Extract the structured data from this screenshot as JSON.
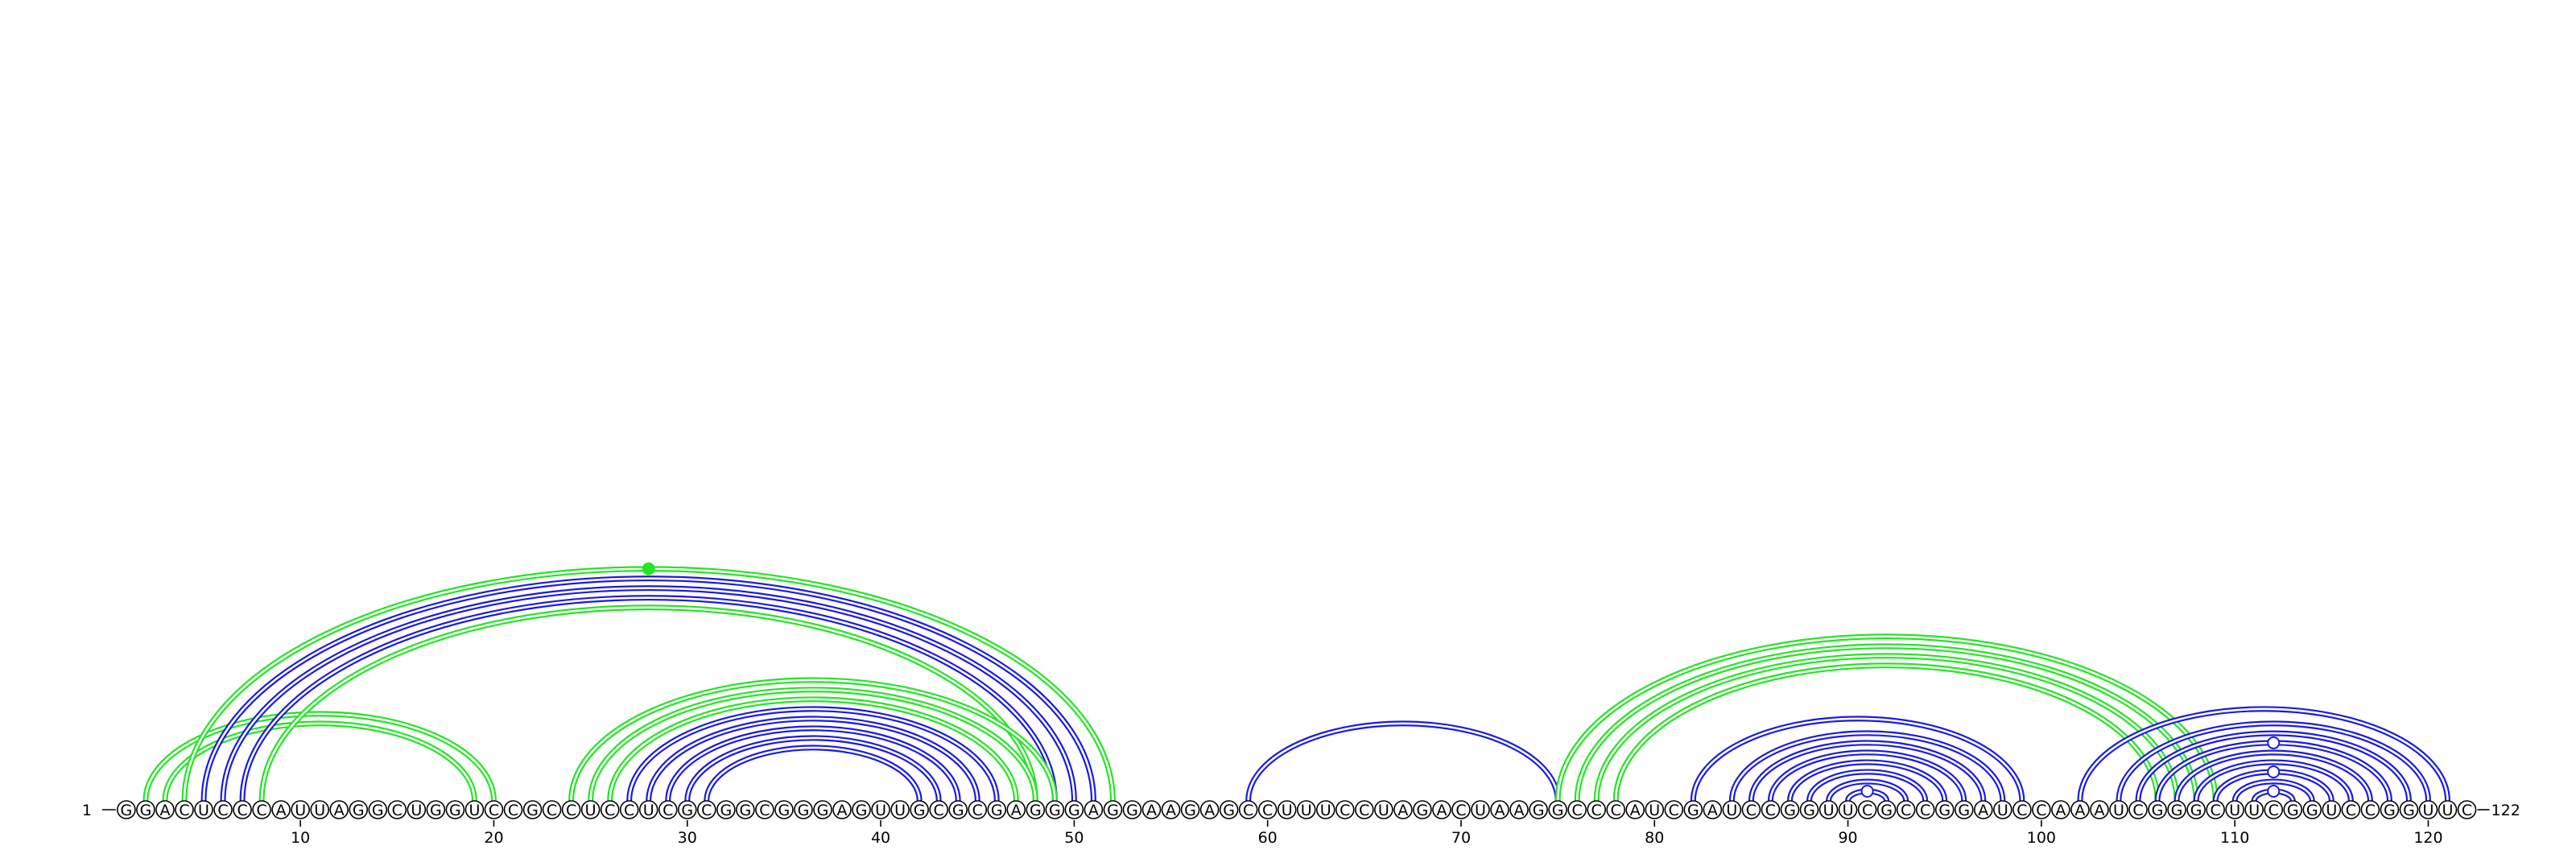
{
  "sequence": "GGACUCCCAUUAGGCUGGUCCGCCUCCUCGCGGCGGGAGUUGCGCGAGGGAGGAAGAGCCUUUCCUAGACUAAGGCCCAUCGAUCCGGUUCGCCGGAUCCAAAUCGGGCUUCGGUCCGGUUC",
  "start_label": "1",
  "end_label": "122",
  "colors": {
    "blue": "#1a1ae6",
    "green": "#22e622",
    "line": "#000000"
  },
  "chart_data": {
    "type": "arc-diagram",
    "length": 122,
    "ticks": [
      10,
      20,
      30,
      40,
      50,
      60,
      70,
      80,
      90,
      100,
      110,
      120
    ],
    "arcs": [
      {
        "i": 2,
        "j": 20,
        "color": "green"
      },
      {
        "i": 3,
        "j": 19,
        "color": "green"
      },
      {
        "i": 4,
        "j": 52,
        "color": "green"
      },
      {
        "i": 5,
        "j": 51,
        "color": "blue"
      },
      {
        "i": 6,
        "j": 50,
        "color": "blue"
      },
      {
        "i": 7,
        "j": 49,
        "color": "blue"
      },
      {
        "i": 8,
        "j": 48,
        "color": "green"
      },
      {
        "i": 24,
        "j": 49,
        "color": "green"
      },
      {
        "i": 25,
        "j": 48,
        "color": "green"
      },
      {
        "i": 26,
        "j": 47,
        "color": "green"
      },
      {
        "i": 27,
        "j": 46,
        "color": "blue"
      },
      {
        "i": 28,
        "j": 45,
        "color": "blue"
      },
      {
        "i": 29,
        "j": 44,
        "color": "blue"
      },
      {
        "i": 30,
        "j": 43,
        "color": "blue"
      },
      {
        "i": 31,
        "j": 42,
        "color": "blue"
      },
      {
        "i": 59,
        "j": 75,
        "color": "blue"
      },
      {
        "i": 75,
        "j": 109,
        "color": "green"
      },
      {
        "i": 76,
        "j": 108,
        "color": "green"
      },
      {
        "i": 77,
        "j": 107,
        "color": "green"
      },
      {
        "i": 78,
        "j": 106,
        "color": "green"
      },
      {
        "i": 82,
        "j": 99,
        "color": "blue"
      },
      {
        "i": 84,
        "j": 98,
        "color": "blue"
      },
      {
        "i": 85,
        "j": 97,
        "color": "blue"
      },
      {
        "i": 86,
        "j": 96,
        "color": "blue"
      },
      {
        "i": 87,
        "j": 95,
        "color": "blue"
      },
      {
        "i": 88,
        "j": 94,
        "color": "blue"
      },
      {
        "i": 89,
        "j": 93,
        "color": "blue"
      },
      {
        "i": 90,
        "j": 92,
        "color": "blue"
      },
      {
        "i": 102,
        "j": 121,
        "color": "blue"
      },
      {
        "i": 104,
        "j": 120,
        "color": "blue"
      },
      {
        "i": 105,
        "j": 119,
        "color": "blue"
      },
      {
        "i": 106,
        "j": 118,
        "color": "blue"
      },
      {
        "i": 107,
        "j": 117,
        "color": "blue"
      },
      {
        "i": 108,
        "j": 116,
        "color": "blue"
      },
      {
        "i": 109,
        "j": 115,
        "color": "blue"
      },
      {
        "i": 110,
        "j": 114,
        "color": "blue"
      },
      {
        "i": 111,
        "j": 113,
        "color": "blue"
      }
    ],
    "markers": [
      {
        "position": 28,
        "on_arc": 2,
        "style": "filled",
        "color": "green"
      },
      {
        "position": 91,
        "on_arc": 27,
        "style": "hollow",
        "color": "blue"
      },
      {
        "position": 112,
        "on_arc": 36,
        "style": "hollow",
        "color": "blue"
      },
      {
        "position": 112,
        "on_arc": 34,
        "style": "hollow",
        "color": "blue"
      },
      {
        "position": 112,
        "on_arc": 31,
        "style": "hollow",
        "color": "blue"
      }
    ]
  }
}
